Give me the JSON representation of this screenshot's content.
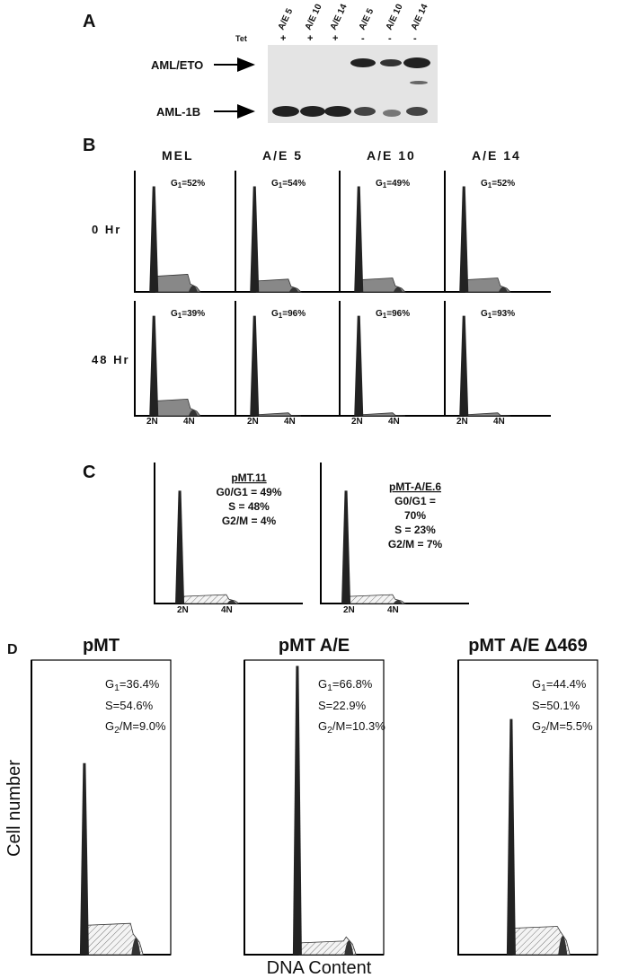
{
  "panel_a": {
    "label": "A",
    "lanes": [
      "A/E 5",
      "A/E 10",
      "A/E 14",
      "A/E 5",
      "A/E 10",
      "A/E 14"
    ],
    "treatment_label": "Tet",
    "treatment": [
      "+",
      "+",
      "+",
      "-",
      "-",
      "-"
    ],
    "bands": [
      "AML/ETO",
      "AML-1B"
    ]
  },
  "panel_b": {
    "label": "B",
    "columns": [
      "MEL",
      "A/E 5",
      "A/E 10",
      "A/E 14"
    ],
    "gate_symbol": "G",
    "gate_sub": "1",
    "rows": [
      {
        "label": "0 Hr",
        "g1": [
          "=52%",
          "=54%",
          "=49%",
          "=52%"
        ]
      },
      {
        "label": "48 Hr",
        "g1": [
          "=39%",
          "=96%",
          "=96%",
          "=93%"
        ]
      }
    ],
    "x_markers": [
      "2N",
      "4N"
    ]
  },
  "panel_c": {
    "label": "C",
    "plots": [
      {
        "name": "pMT.11",
        "lines": [
          "G0/G1 = 49%",
          "S = 48%",
          "G2/M = 4%"
        ]
      },
      {
        "name": "pMT-A/E.6",
        "lines": [
          "G0/G1 =",
          "70%",
          "S = 23%",
          "G2/M = 7%"
        ]
      }
    ],
    "x_markers": [
      "2N",
      "4N"
    ]
  },
  "panel_d": {
    "label": "D",
    "g_symbol": "G",
    "g1_sub": "1",
    "g2_sub": "2",
    "plots": [
      {
        "title": "pMT",
        "g1": "=36.4%",
        "s": "S=54.6%",
        "g2m": "/M=9.0%"
      },
      {
        "title": "pMT A/E",
        "g1": "=66.8%",
        "s": "S=22.9%",
        "g2m": "/M=10.3%"
      },
      {
        "title": "pMT A/E Δ469",
        "g1": "=44.4%",
        "s": "S=50.1%",
        "g2m": "/M=5.5%"
      }
    ],
    "y_label": "Cell number",
    "x_label": "DNA Content"
  }
}
